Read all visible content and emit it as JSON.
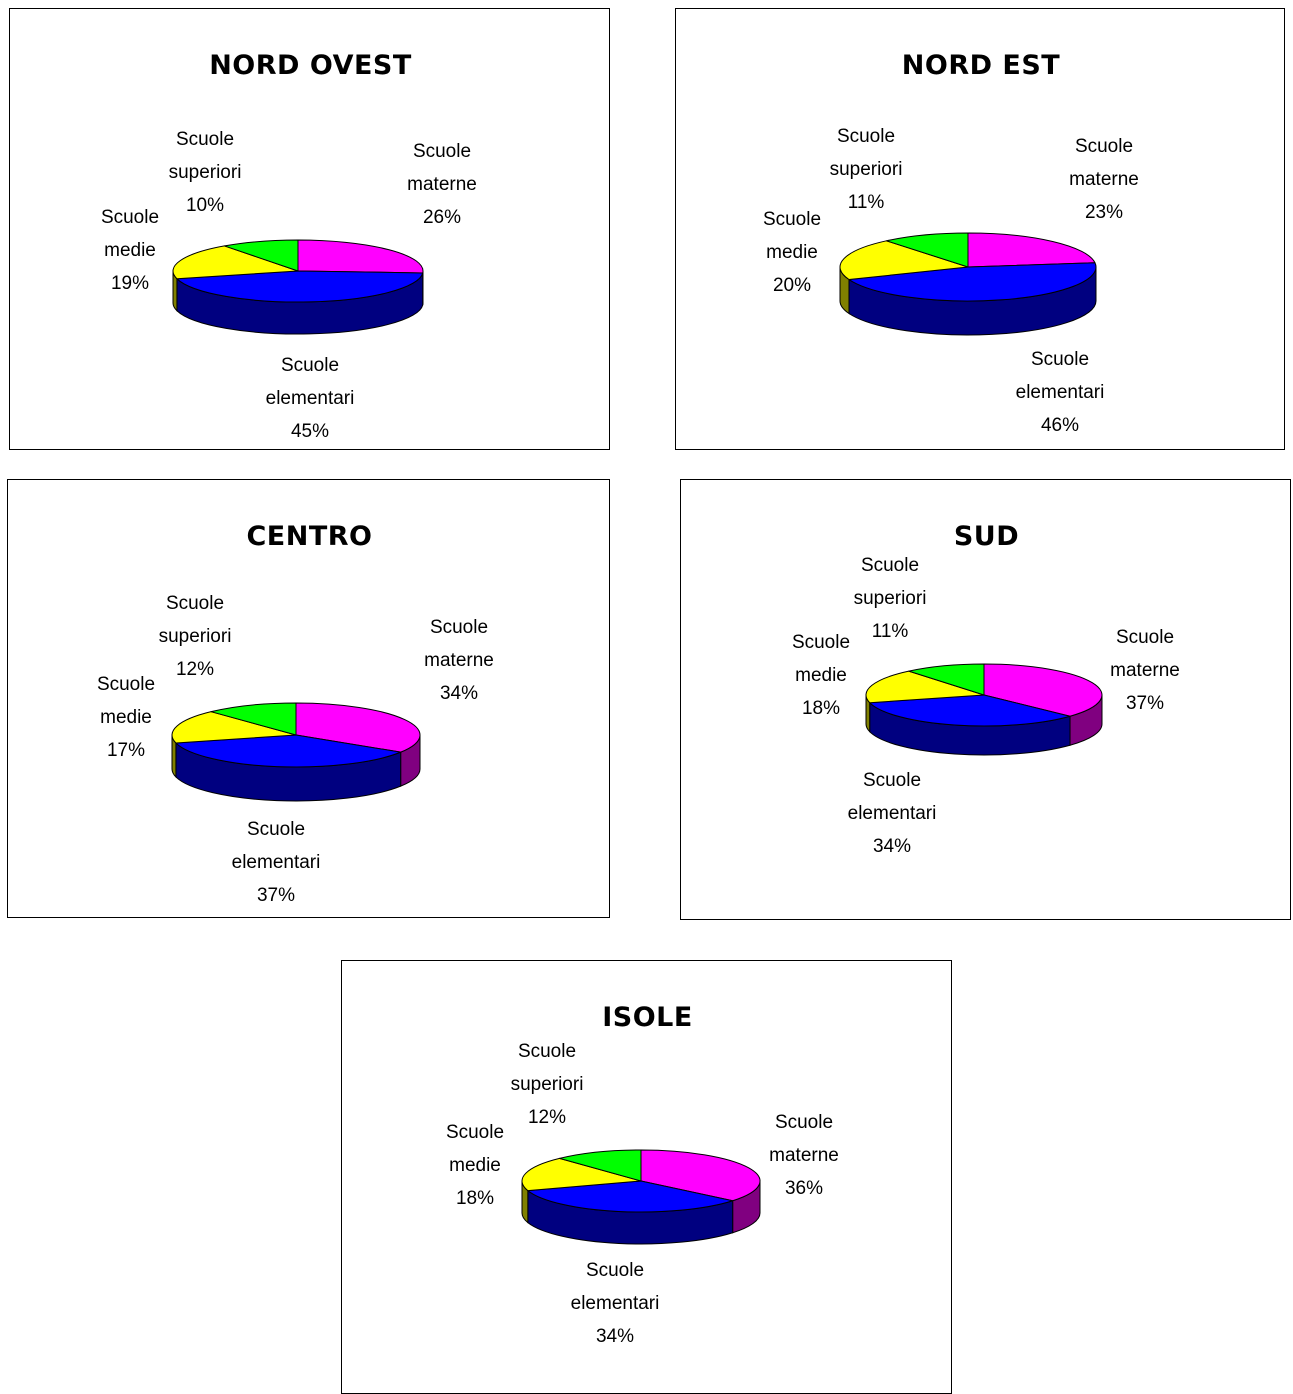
{
  "chart_data": [
    {
      "type": "pie",
      "title": "NORD OVEST",
      "categories": [
        "Scuole materne",
        "Scuole elementari",
        "Scuole medie",
        "Scuole superiori"
      ],
      "values": [
        26,
        45,
        19,
        10
      ],
      "data_labels": [
        {
          "line1": "Scuole",
          "line2": "materne",
          "pct": "26%"
        },
        {
          "line1": "Scuole",
          "line2": "elementari",
          "pct": "45%"
        },
        {
          "line1": "Scuole",
          "line2": "medie",
          "pct": "19%"
        },
        {
          "line1": "Scuole",
          "line2": "superiori",
          "pct": "10%"
        }
      ]
    },
    {
      "type": "pie",
      "title": "NORD EST",
      "categories": [
        "Scuole materne",
        "Scuole elementari",
        "Scuole medie",
        "Scuole superiori"
      ],
      "values": [
        23,
        46,
        20,
        11
      ],
      "data_labels": [
        {
          "line1": "Scuole",
          "line2": "materne",
          "pct": "23%"
        },
        {
          "line1": "Scuole",
          "line2": "elementari",
          "pct": "46%"
        },
        {
          "line1": "Scuole",
          "line2": "medie",
          "pct": "20%"
        },
        {
          "line1": "Scuole",
          "line2": "superiori",
          "pct": "11%"
        }
      ]
    },
    {
      "type": "pie",
      "title": "CENTRO",
      "categories": [
        "Scuole materne",
        "Scuole elementari",
        "Scuole medie",
        "Scuole superiori"
      ],
      "values": [
        34,
        37,
        17,
        12
      ],
      "data_labels": [
        {
          "line1": "Scuole",
          "line2": "materne",
          "pct": "34%"
        },
        {
          "line1": "Scuole",
          "line2": "elementari",
          "pct": "37%"
        },
        {
          "line1": "Scuole",
          "line2": "medie",
          "pct": "17%"
        },
        {
          "line1": "Scuole",
          "line2": "superiori",
          "pct": "12%"
        }
      ]
    },
    {
      "type": "pie",
      "title": "SUD",
      "categories": [
        "Scuole materne",
        "Scuole elementari",
        "Scuole medie",
        "Scuole superiori"
      ],
      "values": [
        37,
        34,
        18,
        11
      ],
      "data_labels": [
        {
          "line1": "Scuole",
          "line2": "materne",
          "pct": "37%"
        },
        {
          "line1": "Scuole",
          "line2": "elementari",
          "pct": "34%"
        },
        {
          "line1": "Scuole",
          "line2": "medie",
          "pct": "18%"
        },
        {
          "line1": "Scuole",
          "line2": "superiori",
          "pct": "11%"
        }
      ]
    },
    {
      "type": "pie",
      "title": "ISOLE",
      "categories": [
        "Scuole materne",
        "Scuole elementari",
        "Scuole medie",
        "Scuole superiori"
      ],
      "values": [
        36,
        34,
        18,
        12
      ],
      "data_labels": [
        {
          "line1": "Scuole",
          "line2": "materne",
          "pct": "36%"
        },
        {
          "line1": "Scuole",
          "line2": "elementari",
          "pct": "34%"
        },
        {
          "line1": "Scuole",
          "line2": "medie",
          "pct": "18%"
        },
        {
          "line1": "Scuole",
          "line2": "superiori",
          "pct": "12%"
        }
      ]
    }
  ],
  "colors": {
    "slices": [
      "#ff00ff",
      "#0000ff",
      "#ffff00",
      "#00ff00"
    ],
    "sides": [
      "#800080",
      "#000080",
      "#808000",
      "#008000"
    ]
  }
}
